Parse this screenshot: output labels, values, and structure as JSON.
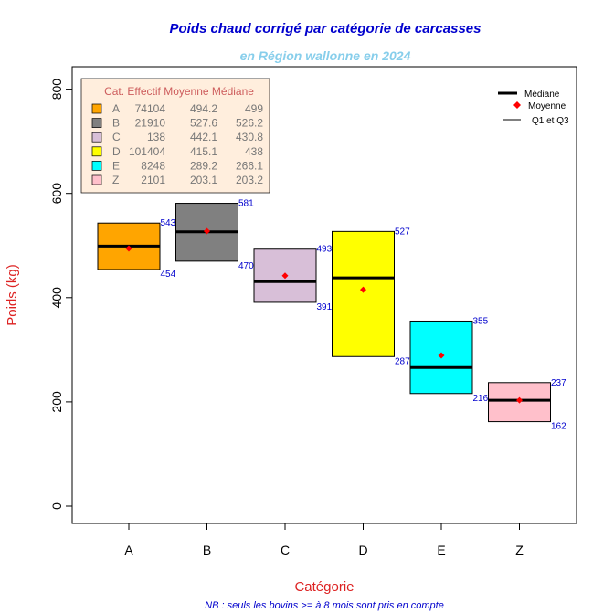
{
  "chart_data": {
    "type": "boxplot",
    "title": "Poids chaud corrigé par catégorie de carcasses",
    "subtitle": "en Région wallonne en 2024",
    "xlabel": "Catégorie",
    "ylabel": "Poids (kg)",
    "footnote": "NB : seuls les bovins >= à 8 mois sont pris en compte",
    "ylim": [
      0,
      850
    ],
    "yticks": [
      0,
      200,
      400,
      600,
      800
    ],
    "categories": [
      "A",
      "B",
      "C",
      "D",
      "E",
      "Z"
    ],
    "colors": [
      "#FFA500",
      "#808080",
      "#D8BFD8",
      "#FFFF00",
      "#00FFFF",
      "#FFC0CB"
    ],
    "q1": [
      454,
      470,
      391,
      287,
      216,
      162
    ],
    "q3": [
      543,
      581,
      493,
      527,
      355,
      237
    ],
    "median": [
      499,
      526.2,
      430.8,
      438,
      266.1,
      203.2
    ],
    "mean": [
      494.2,
      527.6,
      442.1,
      415.1,
      289.2,
      203.1
    ],
    "q1_labels": [
      "454",
      "470",
      "391",
      "287",
      "216",
      "162"
    ],
    "q3_labels": [
      "543",
      "581",
      "493",
      "527",
      "355",
      "237"
    ],
    "table": {
      "header": "Cat. Effectif Moyenne Médiane",
      "rows": [
        {
          "cat": "A",
          "effectif": "74104",
          "moyenne": "494.2",
          "mediane": "499"
        },
        {
          "cat": "B",
          "effectif": "21910",
          "moyenne": "527.6",
          "mediane": "526.2"
        },
        {
          "cat": "C",
          "effectif": "138",
          "moyenne": "442.1",
          "mediane": "430.8"
        },
        {
          "cat": "D",
          "effectif": "101404",
          "moyenne": "415.1",
          "mediane": "438"
        },
        {
          "cat": "E",
          "effectif": "8248",
          "moyenne": "289.2",
          "mediane": "266.1"
        },
        {
          "cat": "Z",
          "effectif": "2101",
          "moyenne": "203.1",
          "mediane": "203.2"
        }
      ]
    },
    "legend": {
      "position": "top-right",
      "items": [
        "Médiane",
        "Moyenne",
        "Q1 et Q3"
      ]
    },
    "style": {
      "title_color": "#0000CD",
      "subtitle_color": "#87CEEB",
      "label_color": "#DD2222",
      "value_label_color": "#0000CD",
      "mean_color": "#FF0000",
      "table_bg": "#FFEEDD",
      "table_header_color": "#CD5C5C",
      "table_text_color": "#777777"
    }
  }
}
